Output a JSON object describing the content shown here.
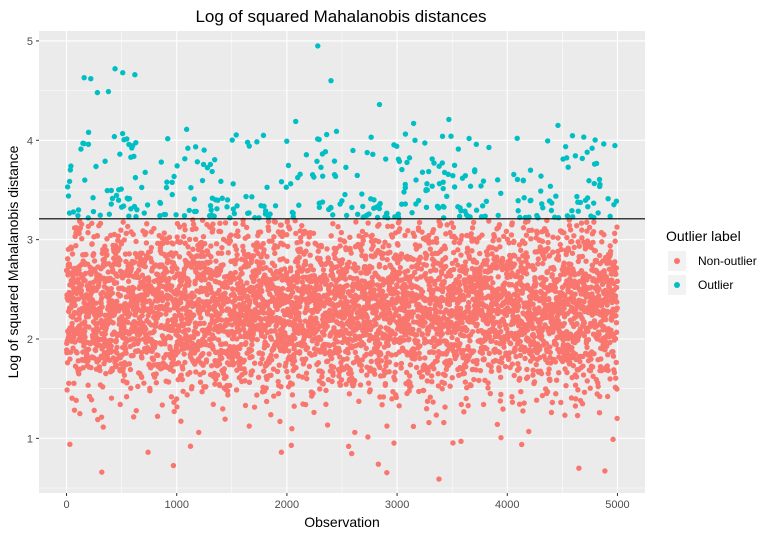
{
  "chart_data": {
    "type": "scatter",
    "title": "Log of squared Mahalanobis distances",
    "xlabel": "Observation",
    "ylabel": "Log of squared Mahalanobis distance",
    "xlim": [
      -250,
      5250
    ],
    "ylim": [
      0.45,
      5.1
    ],
    "x_ticks": [
      0,
      1000,
      2000,
      3000,
      4000,
      5000
    ],
    "x_tick_labels": [
      "0",
      "1000",
      "2000",
      "3000",
      "4000",
      "5000"
    ],
    "y_ticks": [
      1,
      2,
      3,
      4,
      5
    ],
    "y_tick_labels": [
      "1",
      "2",
      "3",
      "4",
      "5"
    ],
    "grid": true,
    "panel_background": "#ebebeb",
    "grid_color": "#ffffff",
    "threshold": {
      "y": 3.21,
      "color": "#000000"
    },
    "n_observations": 5000,
    "legend": {
      "title": "Outlier label",
      "position": "right",
      "entries": [
        {
          "label": "Non-outlier",
          "color": "#F8766D"
        },
        {
          "label": "Outlier",
          "color": "#00BFC4"
        }
      ]
    },
    "series": [
      {
        "name": "Non-outlier",
        "color": "#F8766D",
        "y_range": [
          0.58,
          3.21
        ],
        "y_center": 2.3,
        "notable_points": [
          {
            "x": 30,
            "y": 0.94
          },
          {
            "x": 320,
            "y": 0.66
          },
          {
            "x": 740,
            "y": 0.86
          },
          {
            "x": 1200,
            "y": 1.06
          },
          {
            "x": 1950,
            "y": 0.86
          },
          {
            "x": 2040,
            "y": 0.93
          },
          {
            "x": 2560,
            "y": 0.92
          },
          {
            "x": 2830,
            "y": 0.74
          },
          {
            "x": 3380,
            "y": 0.59
          },
          {
            "x": 3580,
            "y": 0.97
          },
          {
            "x": 4650,
            "y": 0.7
          },
          {
            "x": 4960,
            "y": 0.99
          }
        ]
      },
      {
        "name": "Outlier",
        "color": "#00BFC4",
        "y_range": [
          3.21,
          4.95
        ],
        "notable_points": [
          {
            "x": 160,
            "y": 4.63
          },
          {
            "x": 220,
            "y": 4.62
          },
          {
            "x": 280,
            "y": 4.48
          },
          {
            "x": 380,
            "y": 4.49
          },
          {
            "x": 440,
            "y": 4.72
          },
          {
            "x": 510,
            "y": 4.68
          },
          {
            "x": 620,
            "y": 4.66
          },
          {
            "x": 200,
            "y": 4.08
          },
          {
            "x": 1090,
            "y": 4.11
          },
          {
            "x": 2080,
            "y": 4.19
          },
          {
            "x": 2280,
            "y": 4.95
          },
          {
            "x": 2400,
            "y": 4.6
          },
          {
            "x": 2450,
            "y": 4.09
          },
          {
            "x": 2840,
            "y": 4.36
          },
          {
            "x": 3150,
            "y": 4.17
          },
          {
            "x": 3470,
            "y": 4.21
          },
          {
            "x": 4090,
            "y": 4.02
          },
          {
            "x": 4460,
            "y": 4.15
          },
          {
            "x": 4770,
            "y": 3.92
          }
        ]
      }
    ]
  }
}
